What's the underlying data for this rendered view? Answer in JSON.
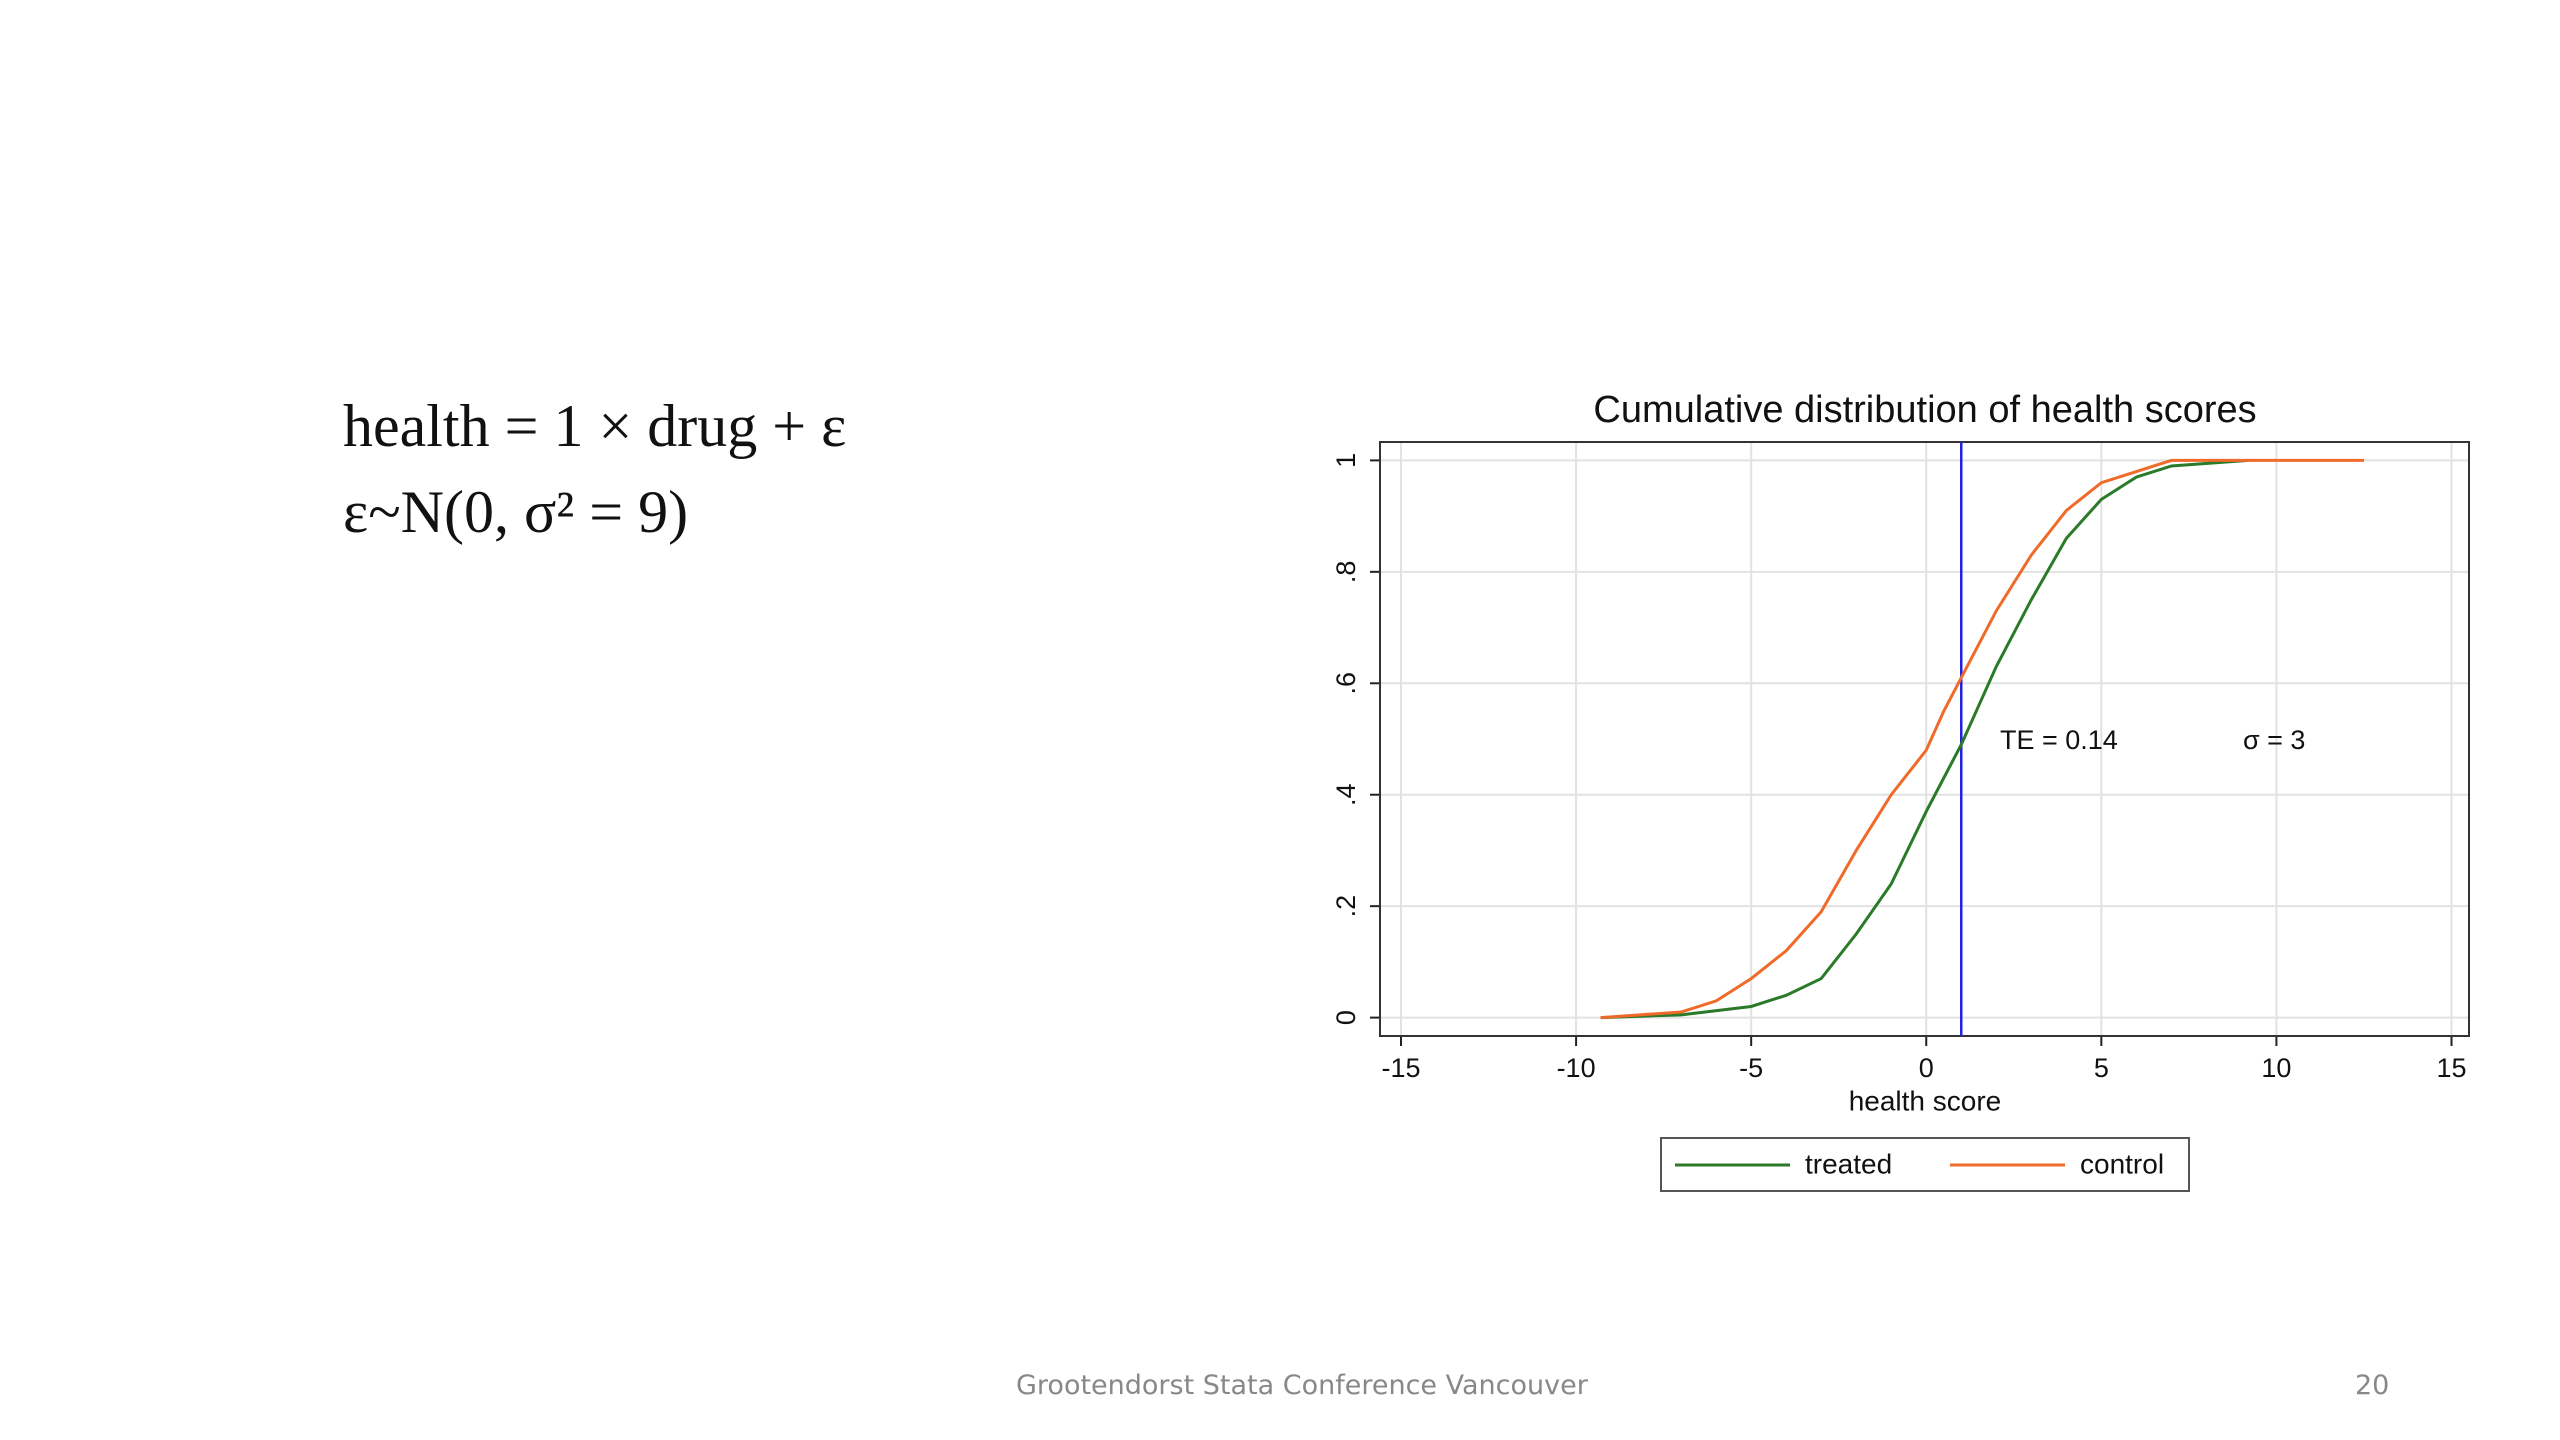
{
  "slide": {
    "equations": [
      "health = 1 × drug + ε",
      "ε~N(0, σ² = 9)"
    ],
    "footer": "Grootendorst Stata Conference Vancouver",
    "page": "20"
  },
  "chart_data": {
    "type": "line",
    "title": "Cumulative distribution of health scores",
    "x_label": "health score",
    "xlim": [
      -15.6,
      15.5
    ],
    "xticks": [
      -15,
      -10,
      -5,
      0,
      5,
      10,
      15
    ],
    "ylim": [
      -0.033,
      1.033
    ],
    "yticks": [
      0,
      {
        "value": 0.2,
        "label": ".2"
      },
      {
        "value": 0.4,
        "label": ".4"
      },
      {
        "value": 0.6,
        "label": ".6"
      },
      {
        "value": 0.8,
        "label": ".8"
      },
      1
    ],
    "grid": true,
    "legend": "bottom",
    "vline": 1,
    "vline_color": "#2222dd",
    "annotations": [
      "TE = 0.14",
      "σ = 3"
    ],
    "series": [
      {
        "name": "treated",
        "color": "#2a7a2a",
        "x": [
          -9.3,
          -7,
          -5,
          -4,
          -3,
          -2,
          -1,
          0,
          0.5,
          1,
          2,
          3,
          4,
          5,
          6,
          7,
          9.2
        ],
        "values": [
          0,
          0.005,
          0.02,
          0.04,
          0.07,
          0.15,
          0.24,
          0.37,
          0.43,
          0.49,
          0.63,
          0.75,
          0.86,
          0.93,
          0.97,
          0.99,
          1
        ]
      },
      {
        "name": "control",
        "color": "#f06a2a",
        "x": [
          -9.3,
          -7,
          -6,
          -5,
          -4,
          -3,
          -2,
          -1,
          0,
          0.5,
          1,
          2,
          3,
          4,
          5,
          6,
          7,
          12.5
        ],
        "values": [
          0,
          0.01,
          0.03,
          0.07,
          0.12,
          0.19,
          0.3,
          0.4,
          0.48,
          0.55,
          0.61,
          0.73,
          0.83,
          0.91,
          0.96,
          0.98,
          1,
          1
        ]
      }
    ]
  }
}
